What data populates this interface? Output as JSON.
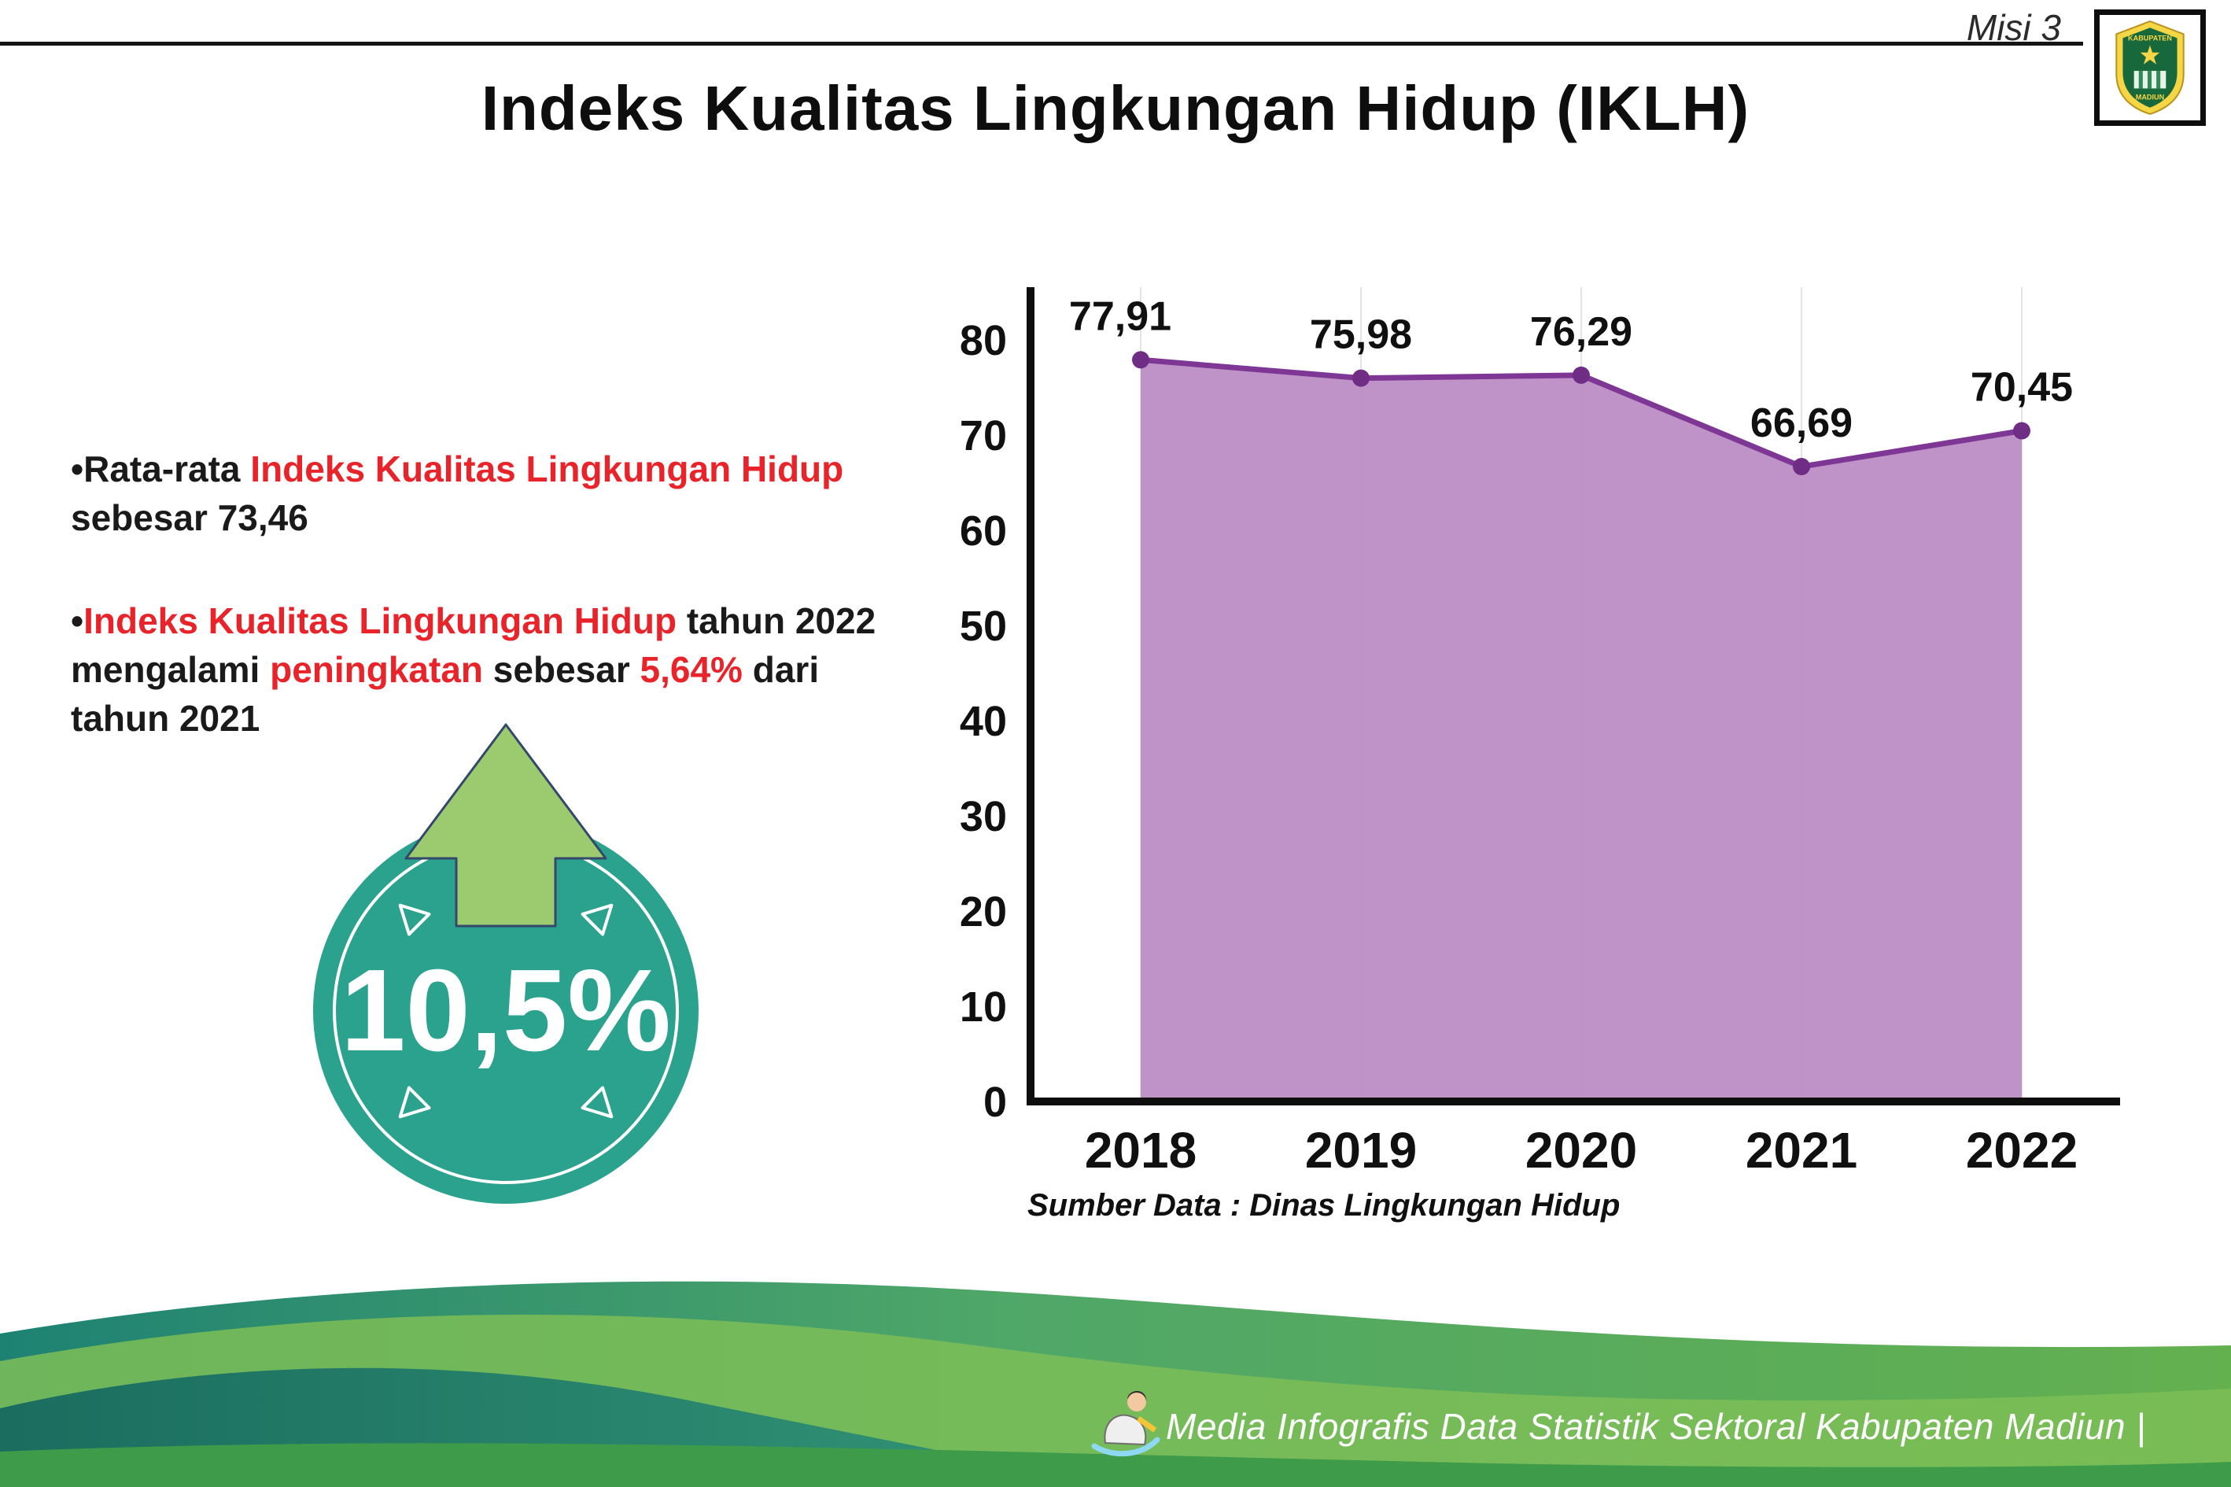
{
  "page": {
    "misi_label": "Misi 3",
    "title": "Indeks Kualitas Lingkungan Hidup (IKLH)",
    "source_note": "Sumber Data : Dinas Lingkungan Hidup",
    "footer_text": "Media Infografis Data Statistik Sektoral Kabupaten Madiun |"
  },
  "logo": {
    "top_text": "KABUPATEN",
    "bottom_text": "MADIUN"
  },
  "bullets": [
    {
      "segments": [
        {
          "text": "•Rata-rata ",
          "red": false
        },
        {
          "text": "Indeks Kualitas Lingkungan Hidup",
          "red": true
        },
        {
          "text": " sebesar 73,46",
          "red": false
        }
      ]
    },
    {
      "segments": [
        {
          "text": "•",
          "red": false
        },
        {
          "text": "Indeks Kualitas Lingkungan Hidup",
          "red": true
        },
        {
          "text": " tahun 2022 mengalami ",
          "red": false
        },
        {
          "text": "peningkatan",
          "red": true
        },
        {
          "text": " sebesar ",
          "red": false
        },
        {
          "text": "5,64%",
          "red": true
        },
        {
          "text": " dari tahun 2021",
          "red": false
        }
      ]
    }
  ],
  "badge": {
    "value": "10,5%",
    "color": "#2BA28D",
    "arrow_color": "#9CCB6F"
  },
  "colors": {
    "highlight_red": "#E8232A",
    "chart_line": "#7E3794",
    "chart_fill": "#BC8DC4",
    "footer_green": "#57AB5D",
    "footer_teal": "#1E8273"
  },
  "chart_data": {
    "type": "area",
    "categories": [
      "2018",
      "2019",
      "2020",
      "2021",
      "2022"
    ],
    "values": [
      77.91,
      75.98,
      76.29,
      66.69,
      70.45
    ],
    "value_labels": [
      "77,91",
      "75,98",
      "76,29",
      "66,69",
      "70,45"
    ],
    "title": "",
    "xlabel": "",
    "ylabel": "",
    "ylim": [
      0,
      80
    ],
    "ytick_step": 10,
    "grid": "vertical-light",
    "legend": "none",
    "line_color": "#7E3794",
    "fill_color": "#BC8DC4",
    "marker_color": "#6F2D86"
  }
}
